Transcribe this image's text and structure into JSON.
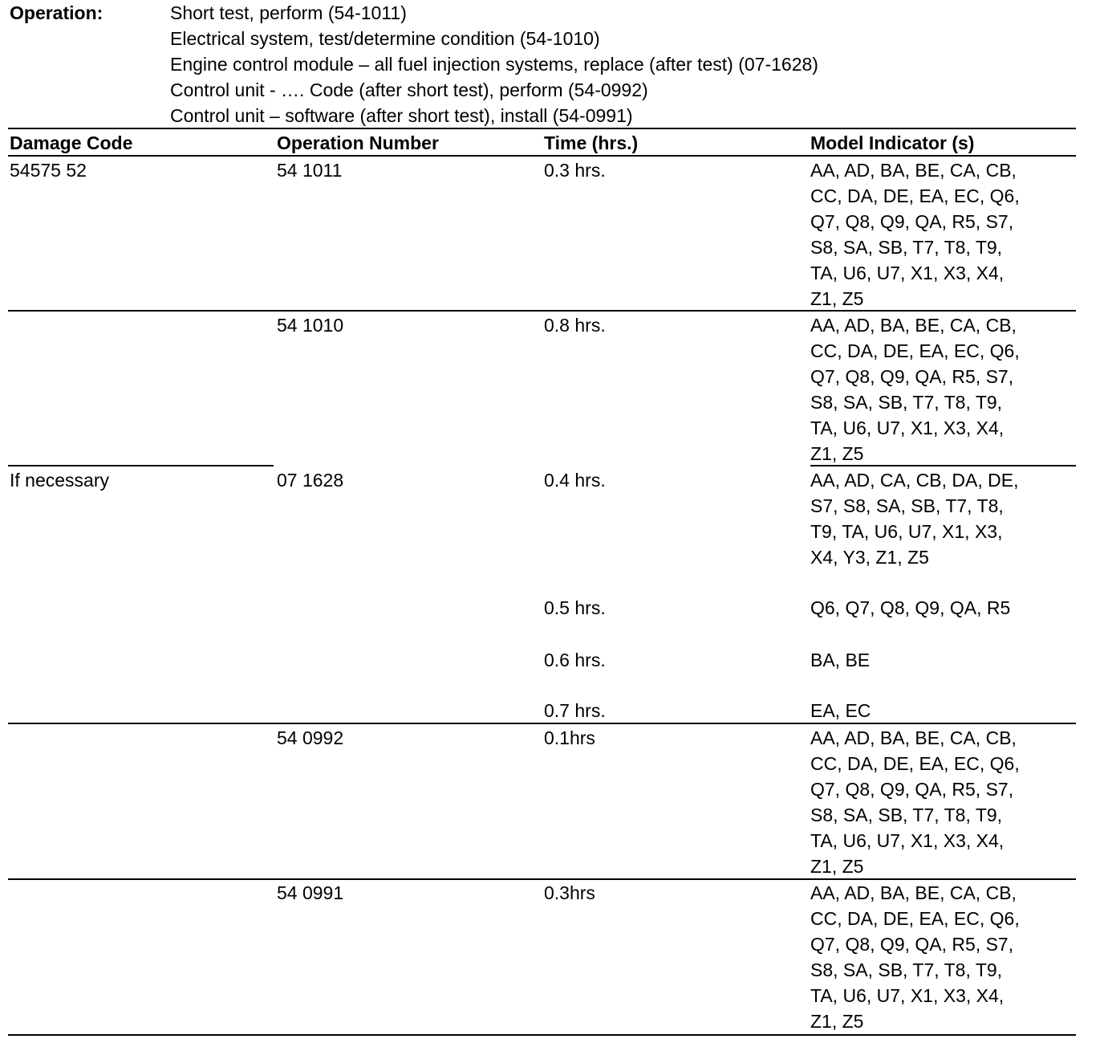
{
  "operation": {
    "label": "Operation:",
    "items": [
      "Short test, perform (54-1011)",
      "Electrical system, test/determine condition (54-1010)",
      "Engine control module – all fuel injection systems, replace (after test) (07-1628)",
      "Control unit - …. Code (after short test), perform (54-0992)",
      "Control unit – software (after short test), install (54-0991)"
    ]
  },
  "table": {
    "headers": [
      "Damage Code",
      "Operation Number",
      "Time (hrs.)",
      "Model Indicator (s)"
    ],
    "rows": [
      {
        "damage_code": "54575 52",
        "operation_number": "54 1011",
        "entries": [
          {
            "time": "0.3 hrs.",
            "models": [
              "AA, AD, BA, BE, CA, CB,",
              "CC, DA, DE, EA, EC, Q6,",
              "Q7, Q8, Q9, QA, R5, S7,",
              "S8, SA, SB, T7, T8, T9,",
              "TA,  U6, U7, X1, X3, X4,",
              "Z1, Z5"
            ]
          }
        ]
      },
      {
        "damage_code": "",
        "operation_number": "54 1010",
        "entries": [
          {
            "time": "0.8 hrs.",
            "models": [
              "AA, AD, BA, BE, CA, CB,",
              "CC, DA, DE, EA, EC, Q6,",
              "Q7, Q8, Q9, QA, R5, S7,",
              "S8, SA, SB, T7, T8, T9,",
              "TA,  U6, U7, X1, X3, X4,",
              "Z1, Z5"
            ]
          }
        ]
      },
      {
        "damage_code": "If necessary",
        "operation_number": "07 1628",
        "entries": [
          {
            "time": "0.4 hrs.",
            "models": [
              "AA, AD, CA, CB, DA, DE,",
              "S7, S8, SA, SB, T7, T8,",
              "T9, TA, U6, U7, X1, X3,",
              "X4, Y3, Z1, Z5"
            ]
          },
          {
            "time": "0.5 hrs.",
            "models": [
              "Q6, Q7, Q8, Q9, QA, R5"
            ]
          },
          {
            "time": "0.6 hrs.",
            "models": [
              "BA, BE"
            ]
          },
          {
            "time": "0.7 hrs.",
            "models": [
              "EA, EC"
            ]
          }
        ]
      },
      {
        "damage_code": "",
        "operation_number": "54 0992",
        "entries": [
          {
            "time": "0.1hrs",
            "models": [
              "AA, AD, BA, BE, CA, CB,",
              "CC, DA, DE, EA, EC, Q6,",
              "Q7, Q8, Q9, QA, R5, S7,",
              "S8, SA, SB, T7, T8, T9,",
              "TA,  U6, U7, X1, X3, X4,",
              "Z1, Z5"
            ]
          }
        ]
      },
      {
        "damage_code": "",
        "operation_number": "54 0991",
        "entries": [
          {
            "time": "0.3hrs",
            "models": [
              "AA, AD, BA, BE, CA, CB,",
              "CC, DA, DE, EA, EC, Q6,",
              "Q7, Q8, Q9, QA, R5, S7,",
              "S8, SA, SB, T7, T8, T9,",
              "TA,  U6, U7, X1, X3, X4,",
              "Z1, Z5"
            ]
          }
        ]
      }
    ]
  }
}
